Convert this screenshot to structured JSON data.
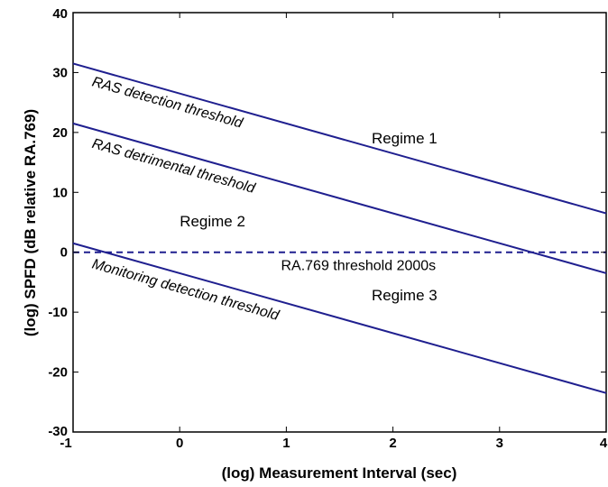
{
  "chart_data": {
    "type": "line",
    "xlabel": "(log) Measurement Interval (sec)",
    "ylabel": "(log) SPFD (dB relative RA.769)",
    "xlim": [
      -1,
      4
    ],
    "ylim": [
      -30,
      40
    ],
    "x_ticks": [
      -1,
      0,
      1,
      2,
      3,
      4
    ],
    "y_ticks": [
      -30,
      -20,
      -10,
      0,
      10,
      20,
      30,
      40
    ],
    "grid": false,
    "series": [
      {
        "x": [
          -1,
          4
        ],
        "y": [
          31.5,
          6.5
        ],
        "color": "#1f1f8f",
        "dash": "solid"
      },
      {
        "x": [
          -1,
          4
        ],
        "y": [
          21.5,
          -3.5
        ],
        "color": "#1f1f8f",
        "dash": "solid"
      },
      {
        "x": [
          -1,
          4
        ],
        "y": [
          1.5,
          -23.5
        ],
        "color": "#1f1f8f",
        "dash": "solid"
      },
      {
        "x": [
          -1,
          4
        ],
        "y": [
          0,
          0
        ],
        "color": "#1f1f8f",
        "dash": "dashed"
      }
    ],
    "annotations": [
      {
        "text": "RAS detection threshold",
        "x": -0.83,
        "y": 27.8,
        "style": "italic",
        "rotate": true
      },
      {
        "text": "RAS detrimental threshold",
        "x": -0.83,
        "y": 17.5,
        "style": "italic",
        "rotate": true
      },
      {
        "text": "Monitoring detection threshold",
        "x": -0.83,
        "y": -2.6,
        "style": "italic",
        "rotate": true
      },
      {
        "text": "RA.769 threshold 2000s",
        "x": 0.95,
        "y": -3.0,
        "style": "normal",
        "rotate": false
      },
      {
        "text": "Regime 1",
        "x": 1.8,
        "y": 18.2,
        "style": "regime",
        "rotate": false
      },
      {
        "text": "Regime 2",
        "x": 0.0,
        "y": 4.3,
        "style": "regime",
        "rotate": false
      },
      {
        "text": "Regime 3",
        "x": 1.8,
        "y": -8.0,
        "style": "regime",
        "rotate": false
      }
    ]
  }
}
